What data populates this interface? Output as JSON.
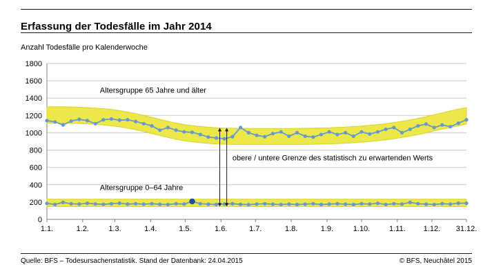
{
  "header": {
    "title": "Erfassung der Todesfälle im Jahr 2014"
  },
  "chart_data": {
    "type": "line",
    "title": "Erfassung der Todesfälle im Jahr 2014",
    "y_caption": "Anzahl Todesfälle pro Kalenderwoche",
    "ylim": [
      0,
      1800
    ],
    "y_ticks": [
      0,
      200,
      400,
      600,
      800,
      1000,
      1200,
      1400,
      1600,
      1800
    ],
    "x_tick_labels": [
      "1.1.",
      "1.2.",
      "1.3.",
      "1.4.",
      "1.5.",
      "1.6.",
      "1.7.",
      "1.8.",
      "1.9.",
      "1.10.",
      "1.11.",
      "1.12.",
      "31.12."
    ],
    "x_tick_days": [
      0,
      31,
      59,
      90,
      120,
      151,
      181,
      212,
      243,
      273,
      304,
      334,
      364
    ],
    "point_interval_days": 7,
    "grid": true,
    "legend_position": "inline-labels",
    "series": [
      {
        "name": "Altersgruppe 65 Jahre und älter",
        "label_pos": {
          "day": 46,
          "value": 1460
        },
        "values": [
          1140,
          1125,
          1090,
          1135,
          1155,
          1140,
          1105,
          1150,
          1160,
          1145,
          1150,
          1130,
          1105,
          1080,
          1030,
          1060,
          1030,
          1010,
          1005,
          980,
          950,
          940,
          930,
          955,
          1060,
          1000,
          970,
          955,
          990,
          1010,
          960,
          1000,
          960,
          950,
          980,
          1010,
          980,
          1000,
          960,
          1010,
          985,
          1010,
          1040,
          1060,
          1000,
          1040,
          1080,
          1100,
          1060,
          1090,
          1070,
          1110,
          1150
        ],
        "band_upper": [
          1300,
          1300,
          1300,
          1298,
          1295,
          1290,
          1285,
          1278,
          1268,
          1255,
          1240,
          1222,
          1200,
          1178,
          1155,
          1132,
          1112,
          1095,
          1082,
          1072,
          1064,
          1058,
          1054,
          1052,
          1050,
          1050,
          1050,
          1050,
          1050,
          1050,
          1050,
          1050,
          1052,
          1054,
          1056,
          1058,
          1062,
          1066,
          1072,
          1078,
          1086,
          1095,
          1105,
          1118,
          1132,
          1148,
          1166,
          1186,
          1208,
          1230,
          1252,
          1272,
          1290
        ],
        "band_lower": [
          1112,
          1112,
          1112,
          1110,
          1107,
          1102,
          1097,
          1090,
          1080,
          1068,
          1053,
          1035,
          1013,
          991,
          968,
          945,
          925,
          908,
          895,
          885,
          877,
          871,
          867,
          865,
          863,
          863,
          863,
          863,
          863,
          863,
          863,
          863,
          865,
          867,
          869,
          871,
          875,
          879,
          885,
          891,
          899,
          908,
          918,
          931,
          945,
          961,
          979,
          999,
          1021,
          1043,
          1060,
          1080,
          1100
        ]
      },
      {
        "name": "Altersgruppe 0–64 Jahre",
        "label_pos": {
          "day": 46,
          "value": 340
        },
        "values": [
          185,
          172,
          196,
          180,
          176,
          186,
          178,
          174,
          181,
          186,
          176,
          181,
          175,
          181,
          174,
          171,
          181,
          176,
          207,
          181,
          175,
          171,
          176,
          181,
          174,
          170,
          176,
          181,
          175,
          171,
          176,
          171,
          175,
          181,
          171,
          176,
          181,
          175,
          171,
          181,
          176,
          186,
          171,
          181,
          176,
          196,
          181,
          175,
          171,
          181,
          176,
          186,
          186
        ],
        "band_upper": [
          233,
          233,
          233,
          233,
          233,
          233,
          233,
          233,
          233,
          233,
          233,
          233,
          233,
          233,
          233,
          233,
          233,
          233,
          233,
          233,
          233,
          233,
          233,
          233,
          233,
          233,
          233,
          233,
          233,
          233,
          233,
          233,
          233,
          233,
          233,
          233,
          233,
          233,
          233,
          233,
          233,
          233,
          233,
          233,
          233,
          233,
          233,
          233,
          233,
          233,
          233,
          233,
          233
        ],
        "band_lower": [
          148,
          148,
          148,
          148,
          148,
          148,
          148,
          148,
          148,
          148,
          148,
          148,
          148,
          148,
          148,
          148,
          148,
          148,
          148,
          148,
          148,
          148,
          148,
          148,
          148,
          148,
          148,
          148,
          148,
          148,
          148,
          148,
          148,
          148,
          148,
          148,
          148,
          148,
          148,
          148,
          148,
          148,
          148,
          148,
          148,
          148,
          148,
          148,
          148,
          148,
          148,
          148,
          148
        ]
      }
    ],
    "highlight_point": {
      "series_index": 1,
      "point_index": 18,
      "value": 207
    },
    "annotation": {
      "label": "obere / untere Grenze des statistisch zu erwartenden Werts",
      "arrow_days": [
        150,
        156
      ],
      "top_value": 1056,
      "bottom_value": 148,
      "label_pos": {
        "day": 161,
        "value": 680
      }
    },
    "colors": {
      "line": "#6699cc",
      "band_fill": "#ece84b",
      "band_edge": "#d8d32f",
      "highlight": "#1f4e9c",
      "grid": "#c9c9c9",
      "axis": "#808080",
      "text": "#000000",
      "rule": "#1a1a1a"
    }
  },
  "footer": {
    "source": "Quelle: BFS – Todesursachenstatistik. Stand der Datenbank: 24.04.2015",
    "copyright": "© BFS, Neuchâtel 2015"
  }
}
